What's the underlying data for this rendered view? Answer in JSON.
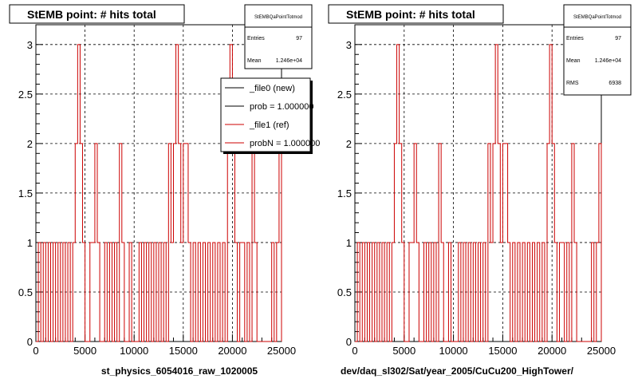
{
  "panels": [
    {
      "title": "StEMB point: # hits total",
      "xlabel": "st_physics_6054016_raw_1020005",
      "stats": {
        "name": "StEMBQaPointTotmod",
        "rows": [
          {
            "label": "Entries",
            "value": "97"
          },
          {
            "label": "Mean",
            "value": "1.246e+04"
          }
        ]
      },
      "legend": {
        "entries": [
          {
            "label": "_file0 (new)",
            "color": "#000000"
          },
          {
            "label": "prob = 1.000000",
            "color": "#000000"
          },
          {
            "label": "_file1 (ref)",
            "color": "#cc0000"
          },
          {
            "label": "probN = 1.000000",
            "color": "#cc0000"
          }
        ]
      }
    },
    {
      "title": "StEMB point: # hits total",
      "xlabel": "dev/daq_sl302/Sat/year_2005/CuCu200_HighTower/",
      "stats": {
        "name": "StEMBQaPointTotmod",
        "rows": [
          {
            "label": "Entries",
            "value": "97"
          },
          {
            "label": "Mean",
            "value": "1.246e+04"
          },
          {
            "label": "RMS",
            "value": "6938"
          }
        ]
      },
      "legend": null
    }
  ],
  "chart_data": {
    "type": "histogram",
    "xlim": [
      0,
      25000
    ],
    "ylim": [
      0,
      3.2
    ],
    "x_ticks": [
      0,
      5000,
      10000,
      15000,
      20000,
      25000
    ],
    "y_ticks": [
      0,
      0.5,
      1,
      1.5,
      2,
      2.5,
      3
    ],
    "grid": true,
    "colors": {
      "new": "#000000",
      "ref": "#cc0000"
    },
    "bin_width": 250,
    "note_values": "Each listed x is the left edge of a bin with the given count; all other bins are 0. Both panels show the same distribution.",
    "series": [
      {
        "bins": [
          {
            "x": 250,
            "count": 1
          },
          {
            "x": 750,
            "count": 1
          },
          {
            "x": 1250,
            "count": 1
          },
          {
            "x": 1750,
            "count": 1
          },
          {
            "x": 2250,
            "count": 1
          },
          {
            "x": 2750,
            "count": 1
          },
          {
            "x": 3250,
            "count": 1
          },
          {
            "x": 3750,
            "count": 1
          },
          {
            "x": 4000,
            "count": 2
          },
          {
            "x": 4250,
            "count": 3
          },
          {
            "x": 4500,
            "count": 2
          },
          {
            "x": 4750,
            "count": 1
          },
          {
            "x": 5500,
            "count": 1
          },
          {
            "x": 5750,
            "count": 1
          },
          {
            "x": 6000,
            "count": 2
          },
          {
            "x": 6250,
            "count": 1
          },
          {
            "x": 7000,
            "count": 1
          },
          {
            "x": 7500,
            "count": 1
          },
          {
            "x": 8000,
            "count": 1
          },
          {
            "x": 8500,
            "count": 2
          },
          {
            "x": 8750,
            "count": 1
          },
          {
            "x": 9500,
            "count": 1
          },
          {
            "x": 10500,
            "count": 1
          },
          {
            "x": 11000,
            "count": 1
          },
          {
            "x": 11500,
            "count": 1
          },
          {
            "x": 12000,
            "count": 1
          },
          {
            "x": 12500,
            "count": 1
          },
          {
            "x": 13000,
            "count": 1
          },
          {
            "x": 13500,
            "count": 2
          },
          {
            "x": 13750,
            "count": 1
          },
          {
            "x": 14000,
            "count": 2
          },
          {
            "x": 14250,
            "count": 3
          },
          {
            "x": 14500,
            "count": 2
          },
          {
            "x": 14750,
            "count": 1
          },
          {
            "x": 15000,
            "count": 2
          },
          {
            "x": 15250,
            "count": 2
          },
          {
            "x": 15500,
            "count": 1
          },
          {
            "x": 16000,
            "count": 1
          },
          {
            "x": 16500,
            "count": 1
          },
          {
            "x": 17000,
            "count": 1
          },
          {
            "x": 17500,
            "count": 1
          },
          {
            "x": 18000,
            "count": 1
          },
          {
            "x": 18500,
            "count": 1
          },
          {
            "x": 19000,
            "count": 1
          },
          {
            "x": 19500,
            "count": 2
          },
          {
            "x": 19750,
            "count": 3
          },
          {
            "x": 20000,
            "count": 2
          },
          {
            "x": 20250,
            "count": 1
          },
          {
            "x": 20750,
            "count": 1
          },
          {
            "x": 21000,
            "count": 1
          },
          {
            "x": 21500,
            "count": 1
          },
          {
            "x": 22000,
            "count": 2
          },
          {
            "x": 22250,
            "count": 1
          },
          {
            "x": 24000,
            "count": 1
          },
          {
            "x": 24500,
            "count": 1
          },
          {
            "x": 24750,
            "count": 2
          }
        ]
      }
    ]
  }
}
